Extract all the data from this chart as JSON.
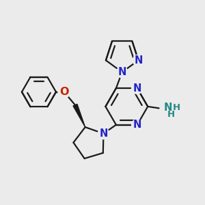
{
  "bg_color": "#ebebeb",
  "bond_color": "#1a1a1a",
  "n_color": "#2222cc",
  "o_color": "#cc2200",
  "nh2_color": "#228888",
  "line_width": 1.6,
  "font_size": 10.5,
  "figsize": [
    3.0,
    3.0
  ],
  "dpi": 100,
  "xlim": [
    0,
    10
  ],
  "ylim": [
    0,
    10
  ]
}
